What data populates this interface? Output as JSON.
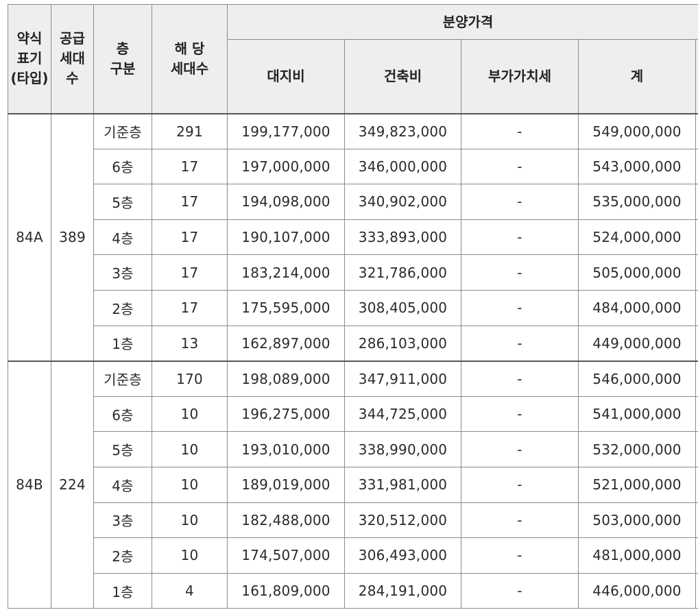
{
  "header": {
    "type_label_lines": [
      "약식",
      "표기",
      "(타입)"
    ],
    "supply_label_lines": [
      "공급",
      "세대",
      "수"
    ],
    "floor_label_lines": [
      "층",
      "구분"
    ],
    "units_label_lines": [
      "해 당",
      "세대수"
    ],
    "price_group": "분양가격",
    "land": "대지비",
    "building": "건축비",
    "vat": "부가가치세",
    "total": "계"
  },
  "groups": [
    {
      "type": "84A",
      "supply": "389",
      "rows": [
        {
          "floor": "기준층",
          "units": "291",
          "land": "199,177,000",
          "building": "349,823,000",
          "vat": "-",
          "total": "549,000,000"
        },
        {
          "floor": "6층",
          "units": "17",
          "land": "197,000,000",
          "building": "346,000,000",
          "vat": "-",
          "total": "543,000,000"
        },
        {
          "floor": "5층",
          "units": "17",
          "land": "194,098,000",
          "building": "340,902,000",
          "vat": "-",
          "total": "535,000,000"
        },
        {
          "floor": "4층",
          "units": "17",
          "land": "190,107,000",
          "building": "333,893,000",
          "vat": "-",
          "total": "524,000,000"
        },
        {
          "floor": "3층",
          "units": "17",
          "land": "183,214,000",
          "building": "321,786,000",
          "vat": "-",
          "total": "505,000,000"
        },
        {
          "floor": "2층",
          "units": "17",
          "land": "175,595,000",
          "building": "308,405,000",
          "vat": "-",
          "total": "484,000,000"
        },
        {
          "floor": "1층",
          "units": "13",
          "land": "162,897,000",
          "building": "286,103,000",
          "vat": "-",
          "total": "449,000,000"
        }
      ]
    },
    {
      "type": "84B",
      "supply": "224",
      "rows": [
        {
          "floor": "기준층",
          "units": "170",
          "land": "198,089,000",
          "building": "347,911,000",
          "vat": "-",
          "total": "546,000,000"
        },
        {
          "floor": "6층",
          "units": "10",
          "land": "196,275,000",
          "building": "344,725,000",
          "vat": "-",
          "total": "541,000,000"
        },
        {
          "floor": "5층",
          "units": "10",
          "land": "193,010,000",
          "building": "338,990,000",
          "vat": "-",
          "total": "532,000,000"
        },
        {
          "floor": "4층",
          "units": "10",
          "land": "189,019,000",
          "building": "331,981,000",
          "vat": "-",
          "total": "521,000,000"
        },
        {
          "floor": "3층",
          "units": "10",
          "land": "182,488,000",
          "building": "320,512,000",
          "vat": "-",
          "total": "503,000,000"
        },
        {
          "floor": "2층",
          "units": "10",
          "land": "174,507,000",
          "building": "306,493,000",
          "vat": "-",
          "total": "481,000,000"
        },
        {
          "floor": "1층",
          "units": "4",
          "land": "161,809,000",
          "building": "284,191,000",
          "vat": "-",
          "total": "446,000,000"
        }
      ]
    }
  ]
}
